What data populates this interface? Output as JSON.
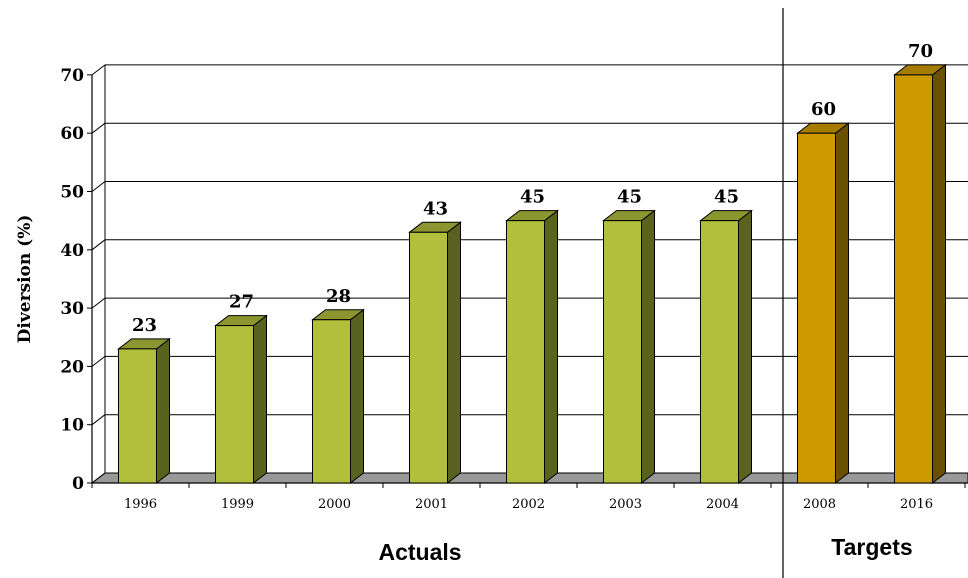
{
  "chart_data": {
    "type": "bar",
    "ylabel": "Diversion (%)",
    "ylim": [
      0,
      70
    ],
    "yticks": [
      0,
      10,
      20,
      30,
      40,
      50,
      60,
      70
    ],
    "grid": true,
    "categories": [
      "1996",
      "1999",
      "2000",
      "2001",
      "2002",
      "2003",
      "2004",
      "2008",
      "2016"
    ],
    "values": [
      23,
      27,
      28,
      43,
      45,
      45,
      45,
      60,
      70
    ],
    "value_labels": [
      "23",
      "27",
      "28",
      "43",
      "45",
      "45",
      "45",
      "60",
      "70"
    ],
    "bar_groups": [
      "actual",
      "actual",
      "actual",
      "actual",
      "actual",
      "actual",
      "actual",
      "target",
      "target"
    ],
    "group_labels": {
      "actual": "Actuals",
      "target": "Targets"
    },
    "colors": {
      "actual_front": "#b1bf3d",
      "actual_side": "#5a621f",
      "actual_top": "#8b9630",
      "target_front": "#cc9900",
      "target_side": "#6b5000",
      "target_top": "#a67c00",
      "floor": "#999999"
    }
  }
}
